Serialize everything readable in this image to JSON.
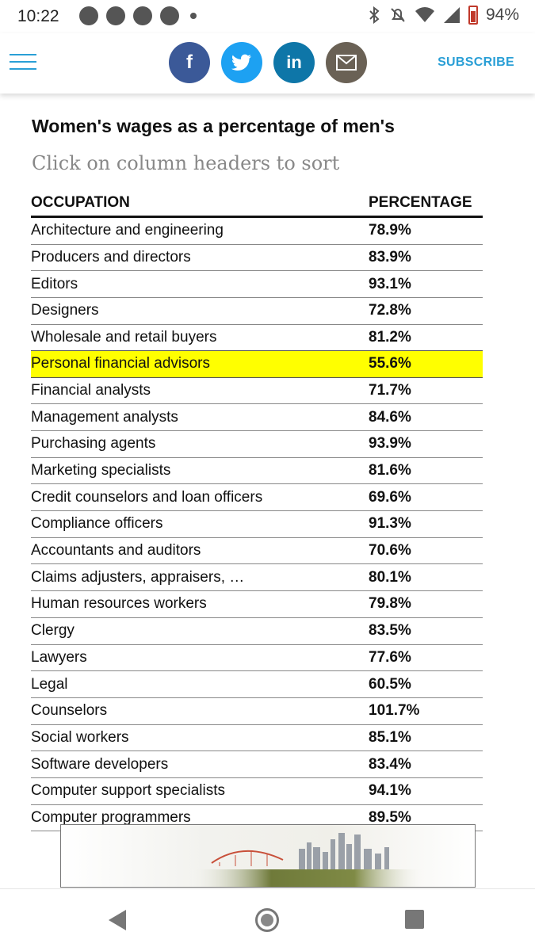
{
  "status": {
    "time": "10:22",
    "battery": "94%"
  },
  "header": {
    "subscribe": "SUBSCRIBE",
    "share": {
      "facebook": "f",
      "twitter": "twitter-bird",
      "linkedin": "in",
      "email": "envelope"
    }
  },
  "article": {
    "title": "Women's wages as a percentage of men's",
    "subtitle": "Click on column headers to sort"
  },
  "table": {
    "columns": [
      "OCCUPATION",
      "PERCENTAGE"
    ],
    "rows": [
      {
        "occupation": "Architecture and engineering",
        "percentage": "78.9%"
      },
      {
        "occupation": "Producers and directors",
        "percentage": "83.9%"
      },
      {
        "occupation": "Editors",
        "percentage": "93.1%"
      },
      {
        "occupation": "Designers",
        "percentage": "72.8%"
      },
      {
        "occupation": "Wholesale and retail buyers",
        "percentage": "81.2%"
      },
      {
        "occupation": "Personal financial advisors",
        "percentage": "55.6%"
      },
      {
        "occupation": "Financial analysts",
        "percentage": "71.7%"
      },
      {
        "occupation": "Management analysts",
        "percentage": "84.6%"
      },
      {
        "occupation": "Purchasing agents",
        "percentage": "93.9%"
      },
      {
        "occupation": "Marketing specialists",
        "percentage": "81.6%"
      },
      {
        "occupation": "Credit counselors and loan officers",
        "percentage": "69.6%"
      },
      {
        "occupation": "Compliance officers",
        "percentage": "91.3%"
      },
      {
        "occupation": "Accountants and auditors",
        "percentage": "70.6%"
      },
      {
        "occupation": "Claims adjusters, appraisers, …",
        "percentage": "80.1%"
      },
      {
        "occupation": "Human resources workers",
        "percentage": "79.8%"
      },
      {
        "occupation": "Clergy",
        "percentage": "83.5%"
      },
      {
        "occupation": "Lawyers",
        "percentage": "77.6%"
      },
      {
        "occupation": "Legal",
        "percentage": "60.5%"
      },
      {
        "occupation": "Counselors",
        "percentage": "101.7%"
      },
      {
        "occupation": "Social workers",
        "percentage": "85.1%"
      },
      {
        "occupation": "Software developers",
        "percentage": "83.4%"
      },
      {
        "occupation": "Computer support specialists",
        "percentage": "94.1%"
      },
      {
        "occupation": "Computer programmers",
        "percentage": "89.5%"
      }
    ],
    "highlighted_row": 5
  },
  "colors": {
    "accent": "#2a9fd6",
    "highlight": "#ffff00",
    "facebook": "#3b5998",
    "twitter": "#1da1f2",
    "linkedin": "#0e76a8",
    "email": "#6a6155"
  }
}
